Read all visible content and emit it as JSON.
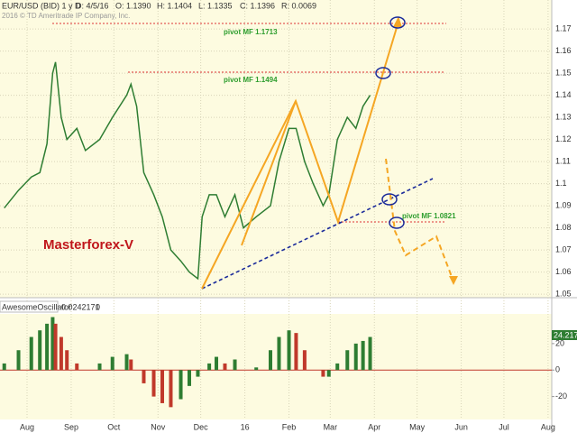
{
  "header": {
    "symbol": "EUR/USD (BID) 1 y D",
    "date": "D: 4/5/16",
    "open": "O: 1.1390",
    "high": "H: 1.1404",
    "low": "L: 1.1335",
    "close": "C: 1.1396",
    "range": "R: 0.0069",
    "copyright": "2016 © TD Ameritrade IP Company, Inc."
  },
  "chart_data": [
    {
      "type": "line",
      "color": "#2e7d32",
      "annotations": [
        "pivot MF 1.1713",
        "pivot MF 1.1494",
        "pivot MF 1.0821",
        "Masterforex-V"
      ],
      "x": [
        -16,
        -6,
        3,
        9,
        14,
        18,
        20,
        24,
        28,
        35,
        41,
        51,
        60,
        70,
        73,
        77,
        82,
        89,
        95,
        101,
        108,
        114,
        120,
        123,
        128,
        133,
        139,
        146,
        152,
        161,
        171,
        177,
        184,
        189,
        195,
        201,
        208,
        212,
        218,
        225,
        231,
        236,
        241
      ],
      "series": [
        {
          "name": "EUR/USD",
          "color": "#2e7d32",
          "values": [
            1.089,
            1.097,
            1.103,
            1.105,
            1.118,
            1.15,
            1.155,
            1.13,
            1.12,
            1.125,
            1.115,
            1.12,
            1.13,
            1.14,
            1.145,
            1.135,
            1.105,
            1.095,
            1.085,
            1.07,
            1.065,
            1.06,
            1.057,
            1.085,
            1.095,
            1.095,
            1.085,
            1.095,
            1.08,
            1.085,
            1.09,
            1.11,
            1.125,
            1.125,
            1.11,
            1.1,
            1.09,
            1.095,
            1.12,
            1.13,
            1.125,
            1.135,
            1.14
          ]
        }
      ],
      "xlim": [
        -19,
        368.6
      ],
      "ylim": [
        1.0484,
        1.1831
      ],
      "yticks": [
        1.05,
        1.06,
        1.07,
        1.08,
        1.09,
        1.1,
        1.11,
        1.12,
        1.13,
        1.14,
        1.15,
        1.16,
        1.17
      ],
      "grid": true
    },
    {
      "type": "bar",
      "title": "AwesomeOscillator",
      "subtitle": "0.0242171",
      "note": "0",
      "last_label": "24.2171",
      "up_color": "#2e7d32",
      "down_color": "#c0392b",
      "x": [
        -16,
        -6,
        3,
        9,
        14,
        18,
        20,
        24,
        28,
        35,
        41,
        51,
        60,
        70,
        73,
        77,
        82,
        89,
        95,
        101,
        108,
        114,
        120,
        123,
        128,
        133,
        139,
        146,
        152,
        161,
        171,
        177,
        184,
        189,
        195,
        201,
        208,
        212,
        218,
        225,
        231,
        236,
        241
      ],
      "values": [
        5,
        15,
        25,
        30,
        35,
        40,
        35,
        25,
        15,
        5,
        0,
        5,
        10,
        12,
        8,
        0,
        -10,
        -20,
        -25,
        -28,
        -22,
        -12,
        -5,
        0,
        5,
        10,
        5,
        8,
        0,
        2,
        15,
        25,
        30,
        28,
        15,
        0,
        -5,
        -5,
        5,
        15,
        20,
        22,
        25
      ],
      "xlim": [
        -19,
        368.6
      ],
      "ylim": [
        -37.3,
        42.4
      ],
      "yticks": [
        20,
        0,
        -20
      ],
      "xticks": [
        {
          "value": 0,
          "label": "Aug"
        },
        {
          "value": 31,
          "label": "Sep"
        },
        {
          "value": 61,
          "label": "Oct"
        },
        {
          "value": 92,
          "label": "Nov"
        },
        {
          "value": 122,
          "label": "Dec"
        },
        {
          "value": 153,
          "label": "16"
        },
        {
          "value": 184,
          "label": "Feb"
        },
        {
          "value": 213,
          "label": "Mar"
        },
        {
          "value": 244,
          "label": "Apr"
        },
        {
          "value": 274,
          "label": "May"
        },
        {
          "value": 305,
          "label": "Jun"
        },
        {
          "value": 335,
          "label": "Jul"
        },
        {
          "value": 366,
          "label": "Aug"
        }
      ]
    }
  ]
}
